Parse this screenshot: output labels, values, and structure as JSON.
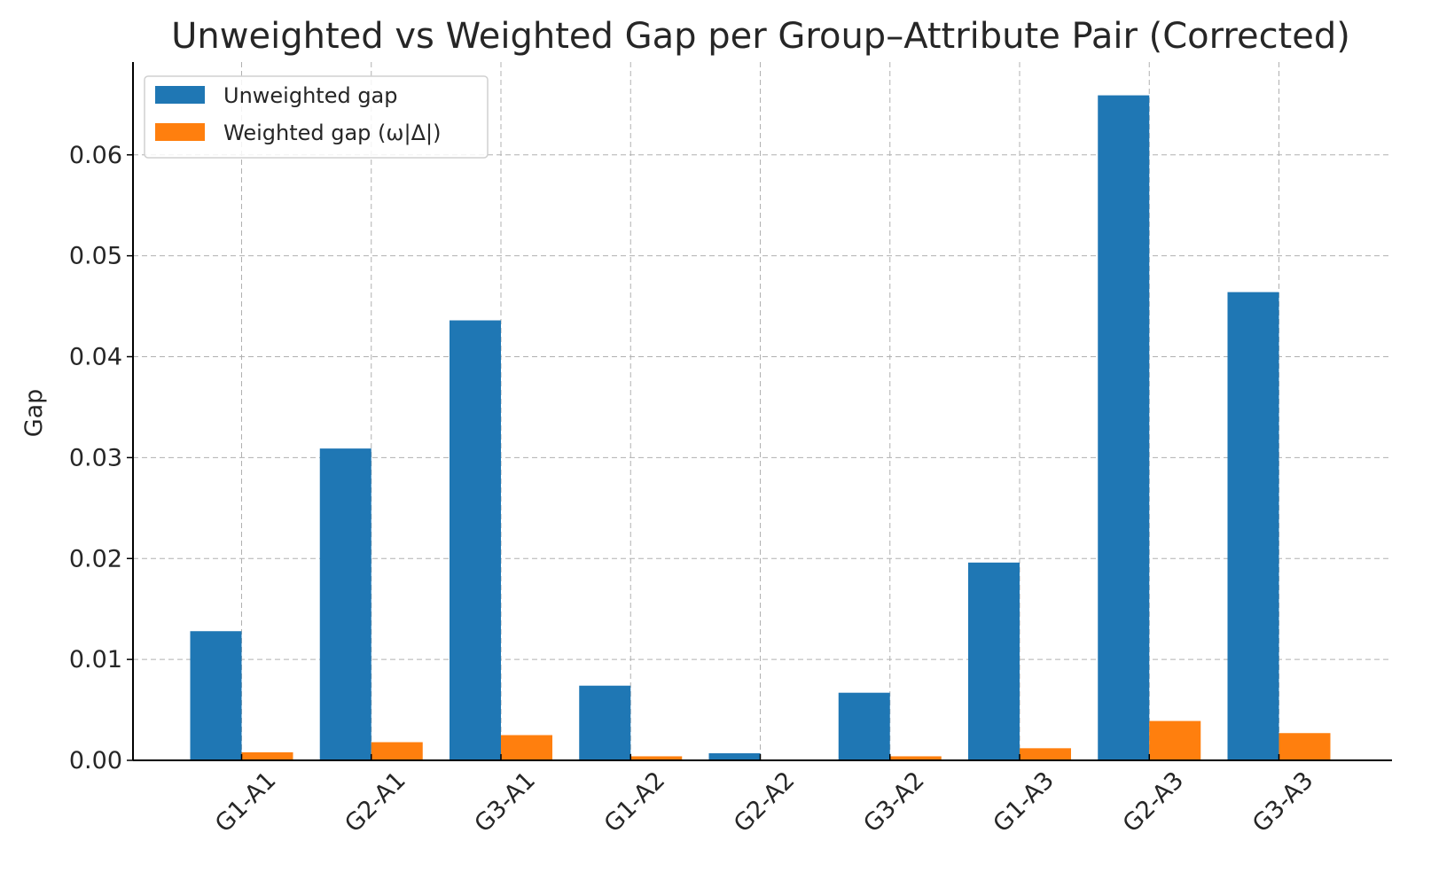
{
  "chart_data": {
    "type": "bar",
    "title": "Unweighted vs Weighted Gap per Group–Attribute Pair (Corrected)",
    "xlabel": "",
    "ylabel": "Gap",
    "categories": [
      "G1-A1",
      "G2-A1",
      "G3-A1",
      "G1-A2",
      "G2-A2",
      "G3-A2",
      "G1-A3",
      "G2-A3",
      "G3-A3"
    ],
    "series": [
      {
        "name": "Unweighted gap",
        "color": "#1f77b4",
        "values": [
          0.0128,
          0.0309,
          0.0436,
          0.0074,
          0.0007,
          0.0067,
          0.0196,
          0.0659,
          0.0464
        ]
      },
      {
        "name": "Weighted gap (ω|Δ|)",
        "color": "#ff7f0e",
        "values": [
          0.0008,
          0.0018,
          0.0025,
          0.0004,
          0.0,
          0.0004,
          0.0012,
          0.0039,
          0.0027
        ]
      }
    ],
    "ylim": [
      0,
      0.0692
    ],
    "yticks": [
      "0.00",
      "0.01",
      "0.02",
      "0.03",
      "0.04",
      "0.05",
      "0.06"
    ],
    "ytick_values": [
      0,
      0.01,
      0.02,
      0.03,
      0.04,
      0.05,
      0.06
    ],
    "grid": true,
    "legend_position": "upper left",
    "x_tick_rotation": "45 degrees"
  }
}
